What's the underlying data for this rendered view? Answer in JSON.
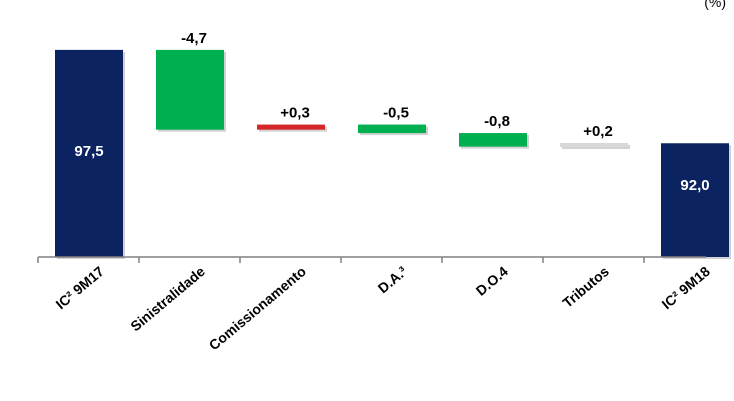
{
  "corner_note": "(%)",
  "colors": {
    "total": "#0b2361",
    "decrease": "#00b050",
    "increase": "#d62728",
    "neutral": "#d9d9d9",
    "axis": "#808080",
    "label_on_bar": "#ffffff",
    "label": "#000000"
  },
  "chart_data": {
    "type": "bar",
    "subtype": "waterfall",
    "categories": [
      "IC² 9M17",
      "Sinistralidade",
      "Comissionamento",
      "D.A.³",
      "D.O.4",
      "Tributos",
      "IC² 9M18"
    ],
    "values": [
      97.5,
      -4.7,
      0.3,
      -0.5,
      -0.8,
      0.2,
      92.0
    ],
    "bar_kinds": [
      "total",
      "decrease",
      "increase",
      "decrease",
      "decrease",
      "neutral",
      "total"
    ],
    "value_labels": [
      "97,5",
      "-4,7",
      "+0,3",
      "-0,5",
      "-0,8",
      "+0,2",
      "92,0"
    ],
    "ylim": [
      85.3,
      98.2
    ],
    "grid": false,
    "legend": "none"
  }
}
